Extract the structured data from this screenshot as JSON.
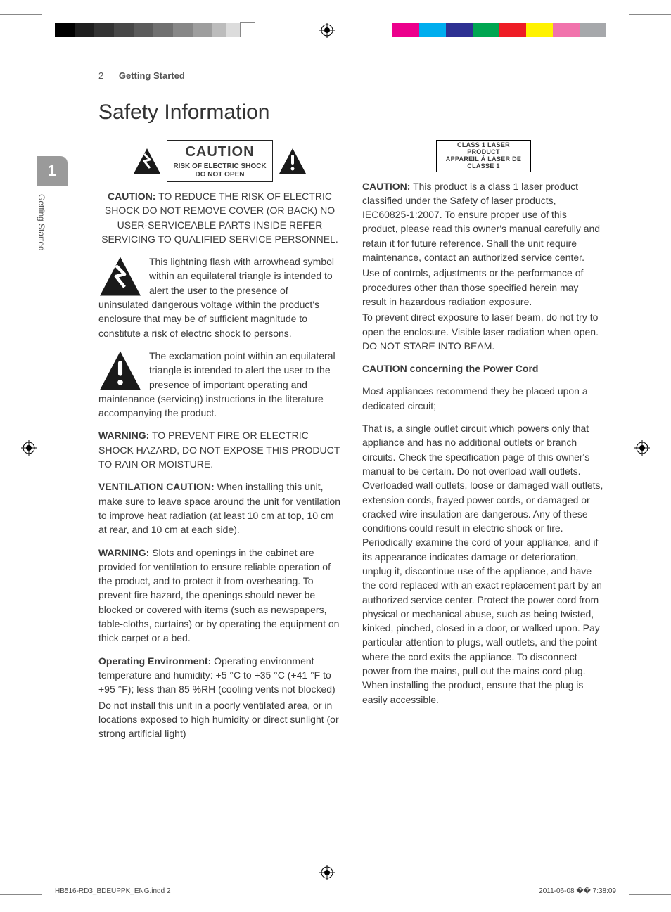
{
  "page": {
    "number": "2",
    "section": "Getting Started",
    "title": "Safety Information"
  },
  "side_tab": {
    "num": "1",
    "label": "Getting Started"
  },
  "caution_box": {
    "title": "CAUTION",
    "line1": "RISK OF ELECTRIC SHOCK",
    "line2": "DO NOT OPEN"
  },
  "left": {
    "p1_lead": "CAUTION:",
    "p1": " TO REDUCE THE RISK OF ELECTRIC SHOCK DO NOT REMOVE COVER (OR BACK) NO USER-SERVICEABLE PARTS INSIDE REFER SERVICING TO QUALIFIED SERVICE PERSONNEL.",
    "p2": "This lightning flash with arrowhead symbol within an equilateral triangle is intended to alert the user to the presence of uninsulated dangerous voltage within the product's enclosure that may be of sufficient magnitude to constitute a risk of electric shock to persons.",
    "p3": "The exclamation point within an equilateral triangle is intended to alert the user to the presence of important operating and maintenance (servicing) instructions in the literature accompanying the product.",
    "p4_lead": "WARNING:",
    "p4": " TO PREVENT FIRE OR ELECTRIC SHOCK HAZARD, DO NOT EXPOSE THIS PRODUCT TO RAIN OR MOISTURE.",
    "p5_lead": "VENTILATION CAUTION:",
    "p5": " When installing this unit, make sure to leave space around the unit for ventilation to improve heat radiation (at least 10 cm at top, 10 cm at rear, and 10 cm at each side).",
    "p6_lead": "WARNING:",
    "p6": " Slots and openings in the cabinet are provided for ventilation to ensure reliable operation of the product, and to protect it from overheating. To prevent fire hazard, the openings should never be blocked or covered with items (such as newspapers, table-cloths, curtains) or by operating the equipment on thick carpet or a bed.",
    "p7_lead": "Operating Environment:",
    "p7": " Operating environment temperature and humidity: +5 °C to +35 °C (+41 °F to +95 °F); less than 85 %RH (cooling vents not blocked)",
    "p7b": "Do not install this unit in a poorly ventilated area, or in locations exposed to high humidity or direct sunlight (or strong artificial light)"
  },
  "right": {
    "laser_label_l1": "CLASS 1 LASER PRODUCT",
    "laser_label_l2": "APPAREIL Á LASER DE CLASSE 1",
    "p1_lead": "CAUTION:",
    "p1": " This product is a class 1 laser product classified under the Safety of laser products, IEC60825-1:2007. To ensure proper use of this product, please read this owner's manual carefully and retain it for future reference. Shall the unit require maintenance, contact an authorized service center.",
    "p1b": "Use of controls, adjustments or the performance of procedures other than those specified herein may result in hazardous radiation exposure.",
    "p1c": "To prevent direct exposure to laser beam, do not try to open the enclosure. Visible laser radiation when open. DO NOT STARE INTO BEAM.",
    "p2_head": "CAUTION concerning the Power Cord",
    "p2a": "Most appliances recommend they be placed upon a dedicated circuit;",
    "p2b": "That is, a single outlet circuit which powers only that appliance and has no additional outlets or branch circuits. Check the specification page of this owner's manual to be certain. Do not overload wall outlets. Overloaded wall outlets, loose or damaged wall outlets, extension cords, frayed power cords, or damaged or cracked wire insulation are dangerous. Any of these conditions could result in electric shock or fire. Periodically examine the cord of your appliance, and if its appearance indicates damage or deterioration, unplug it, discontinue use of the appliance, and have the cord replaced with an exact replacement part by an authorized service center. Protect the power cord from physical or mechanical abuse, such as being twisted, kinked, pinched, closed in a door, or walked upon. Pay particular attention to plugs, wall outlets, and the point where the cord exits the appliance. To disconnect power from the mains, pull out the mains cord plug. When installing the product, ensure that the plug is easily accessible."
  },
  "footer": {
    "file": "HB516-RD3_BDEUPPK_ENG.indd   2",
    "stamp": "2011-06-08   �� 7:38:09"
  },
  "marks": {
    "gray_swatches": [
      "#000000",
      "#1e1e1e",
      "#333333",
      "#474747",
      "#5b5b5b",
      "#707070",
      "#878787",
      "#9e9e9e",
      "#bcbcbc",
      "#dcdcdc",
      "#ffffff"
    ],
    "gray_widths": [
      28,
      28,
      28,
      28,
      28,
      28,
      28,
      28,
      20,
      20,
      20
    ],
    "color_swatches": [
      "#ec008c",
      "#00adee",
      "#2e3192",
      "#00a651",
      "#ee1c25",
      "#fff200",
      "#f173ac",
      "#a6a8ab"
    ],
    "color_width": 38,
    "rule_color": "#888888"
  }
}
